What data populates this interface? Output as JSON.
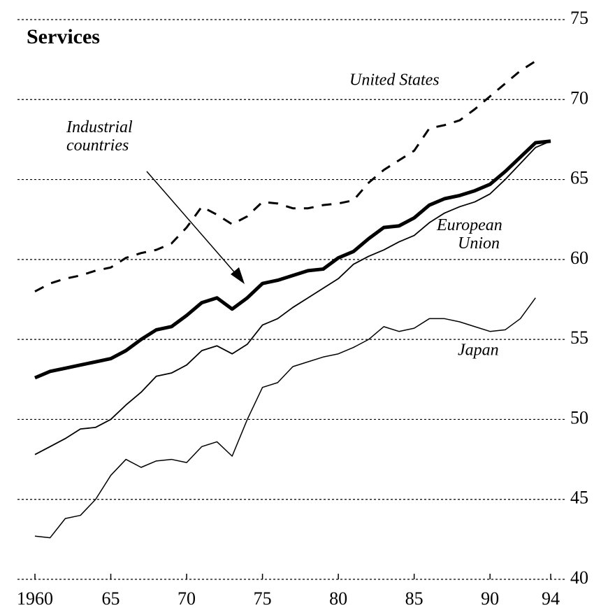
{
  "chart_data": {
    "type": "line",
    "title": "Services",
    "x": [
      1960,
      1961,
      1962,
      1963,
      1964,
      1965,
      1966,
      1967,
      1968,
      1969,
      1970,
      1971,
      1972,
      1973,
      1974,
      1975,
      1976,
      1977,
      1978,
      1979,
      1980,
      1981,
      1982,
      1983,
      1984,
      1985,
      1986,
      1987,
      1988,
      1989,
      1990,
      1991,
      1992,
      1993,
      1994
    ],
    "series": [
      {
        "name": "United States",
        "color": "#000000",
        "style": "dashed",
        "width": 3,
        "values": [
          58.0,
          58.5,
          58.8,
          59.0,
          59.3,
          59.5,
          60.1,
          60.4,
          60.6,
          61.0,
          62.0,
          63.3,
          62.8,
          62.2,
          62.7,
          63.6,
          63.5,
          63.2,
          63.2,
          63.4,
          63.5,
          63.7,
          64.8,
          65.6,
          66.2,
          66.8,
          68.2,
          68.4,
          68.7,
          69.4,
          70.2,
          71.0,
          71.8,
          72.4,
          null
        ]
      },
      {
        "name": "Industrial countries",
        "color": "#000000",
        "style": "solid",
        "width": 5,
        "values": [
          52.6,
          53.0,
          53.2,
          53.4,
          53.6,
          53.8,
          54.3,
          55.0,
          55.6,
          55.8,
          56.5,
          57.3,
          57.6,
          56.9,
          57.6,
          58.5,
          58.7,
          59.0,
          59.3,
          59.4,
          60.1,
          60.5,
          61.3,
          62.0,
          62.1,
          62.6,
          63.4,
          63.8,
          64.0,
          64.3,
          64.7,
          65.5,
          66.4,
          67.3,
          67.4
        ]
      },
      {
        "name": "European Union",
        "color": "#000000",
        "style": "solid",
        "width": 1.8,
        "values": [
          47.8,
          48.3,
          48.8,
          49.4,
          49.5,
          50.0,
          50.9,
          51.7,
          52.7,
          52.9,
          53.4,
          54.3,
          54.6,
          54.1,
          54.7,
          55.9,
          56.3,
          57.0,
          57.6,
          58.2,
          58.8,
          59.7,
          60.2,
          60.6,
          61.1,
          61.5,
          62.3,
          62.9,
          63.3,
          63.6,
          64.1,
          65.0,
          66.0,
          67.0,
          67.4
        ]
      },
      {
        "name": "Japan",
        "color": "#000000",
        "style": "solid",
        "width": 1.5,
        "values": [
          42.7,
          42.6,
          43.8,
          44.0,
          45.0,
          46.5,
          47.5,
          47.0,
          47.4,
          47.5,
          47.3,
          48.3,
          48.6,
          47.7,
          50.0,
          52.0,
          52.3,
          53.3,
          53.6,
          53.9,
          54.1,
          54.5,
          55.0,
          55.8,
          55.5,
          55.7,
          56.3,
          56.3,
          56.1,
          55.8,
          55.5,
          55.6,
          56.3,
          57.6,
          null
        ]
      }
    ],
    "xlim": [
      1960,
      1994
    ],
    "xticks": [
      1960,
      {
        "value": 1965,
        "label": "65"
      },
      {
        "value": 1970,
        "label": "70"
      },
      {
        "value": 1975,
        "label": "75"
      },
      {
        "value": 1980,
        "label": "80"
      },
      {
        "value": 1985,
        "label": "85"
      },
      {
        "value": 1990,
        "label": "90"
      },
      {
        "value": 1994,
        "label": "94"
      }
    ],
    "ylim": [
      40,
      75
    ],
    "yticks": [
      40,
      45,
      50,
      55,
      60,
      65,
      70,
      75
    ],
    "grid": true,
    "legend": "inline"
  }
}
